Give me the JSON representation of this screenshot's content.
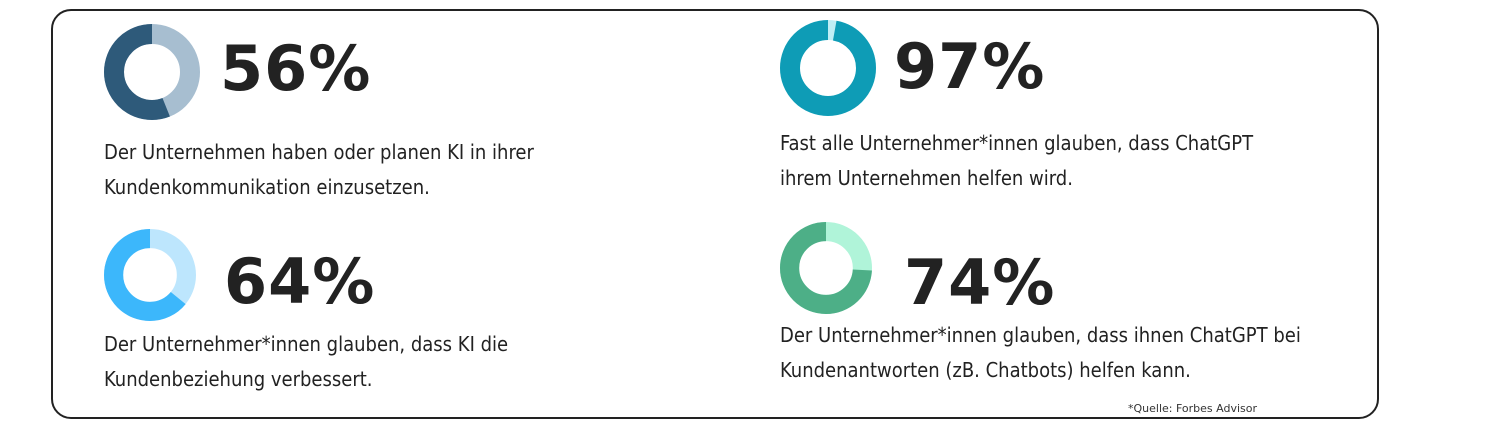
{
  "chart_data": [
    {
      "type": "pie",
      "value": 56,
      "percent_label": "56%",
      "description": "Der Unternehmen haben oder planen KI in ihrer Kundenkommunikation einzusetzen.",
      "colors": {
        "filled": "#2e5a7a",
        "remaining": "#a7bed0"
      }
    },
    {
      "type": "pie",
      "value": 97,
      "percent_label": "97%",
      "description": "Fast alle Unternehmer*innen glauben, dass ChatGPT ihrem Unternehmen helfen wird.",
      "colors": {
        "filled": "#0e9cb6",
        "remaining": "#bfeef5"
      }
    },
    {
      "type": "pie",
      "value": 64,
      "percent_label": "64%",
      "description": "Der Unternehmer*innen glauben, dass KI die Kundenbeziehung verbessert.",
      "colors": {
        "filled": "#3cb7fb",
        "remaining": "#bde6fd"
      }
    },
    {
      "type": "pie",
      "value": 74,
      "percent_label": "74%",
      "description": "Der Unternehmer*innen glauben, dass ihnen ChatGPT bei Kundenantworten (zB. Chatbots) helfen kann.",
      "colors": {
        "filled": "#4daf87",
        "remaining": "#b0f4d9"
      }
    }
  ],
  "source_note": "*Quelle: Forbes Advisor"
}
